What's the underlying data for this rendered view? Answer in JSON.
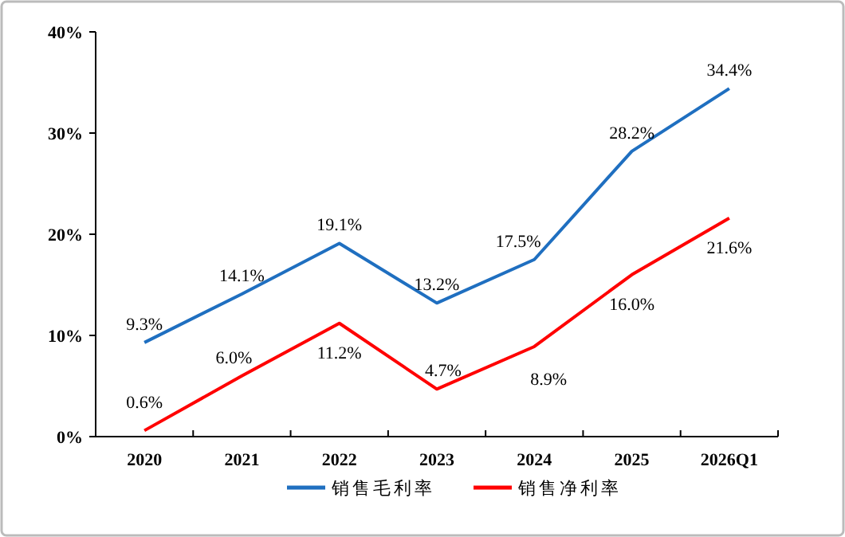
{
  "chart_data": {
    "type": "line",
    "categories": [
      "2020",
      "2021",
      "2022",
      "2023",
      "2024",
      "2025",
      "2026Q1"
    ],
    "series": [
      {
        "name": "销售毛利率",
        "color": "#1f6fc0",
        "values": [
          9.3,
          14.1,
          19.1,
          13.2,
          17.5,
          28.2,
          34.4
        ],
        "value_labels": [
          "9.3%",
          "14.1%",
          "19.1%",
          "13.2%",
          "17.5%",
          "28.2%",
          "34.4%"
        ]
      },
      {
        "name": "销售净利率",
        "color": "#ff0000",
        "values": [
          0.6,
          6.0,
          11.2,
          4.7,
          8.9,
          16.0,
          21.6
        ],
        "value_labels": [
          "0.6%",
          "6.0%",
          "11.2%",
          "4.7%",
          "8.9%",
          "16.0%",
          "21.6%"
        ]
      }
    ],
    "ylim": [
      0,
      40
    ],
    "yticks": [
      {
        "value": 0,
        "label": "0%"
      },
      {
        "value": 10,
        "label": "10%"
      },
      {
        "value": 20,
        "label": "20%"
      },
      {
        "value": 30,
        "label": "30%"
      },
      {
        "value": 40,
        "label": "40%"
      }
    ],
    "grid": false,
    "legend": "bottom",
    "marker": "none",
    "line_style": "solid"
  }
}
